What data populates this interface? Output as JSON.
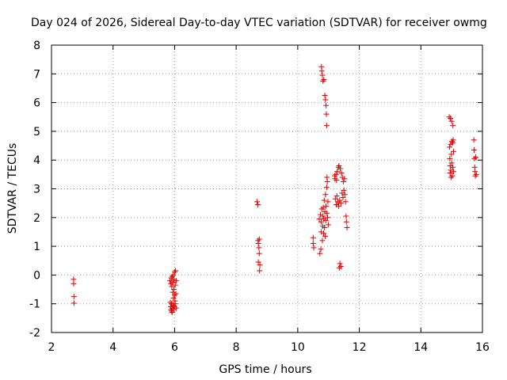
{
  "chart_data": {
    "type": "scatter",
    "title": "Day 024 of 2026, Sidereal Day-to-day VTEC variation (SDTVAR) for receiver owmg",
    "xlabel": "GPS time / hours",
    "ylabel": "SDTVAR / TECUs",
    "xlim": [
      2,
      16
    ],
    "ylim": [
      -2,
      8
    ],
    "xticks": [
      2,
      4,
      6,
      8,
      10,
      12,
      14,
      16
    ],
    "yticks": [
      -2,
      -1,
      0,
      1,
      2,
      3,
      4,
      5,
      6,
      7,
      8
    ],
    "grid": true,
    "marker": "+",
    "color": "#e00000",
    "series": [
      {
        "name": "SDTVAR",
        "points": [
          [
            2.72,
            -0.15
          ],
          [
            2.72,
            -0.3
          ],
          [
            2.73,
            -0.75
          ],
          [
            2.73,
            -0.98
          ],
          [
            5.85,
            -0.2
          ],
          [
            5.86,
            -0.95
          ],
          [
            5.87,
            -1.1
          ],
          [
            5.88,
            -0.3
          ],
          [
            5.88,
            -1.2
          ],
          [
            5.89,
            -0.1
          ],
          [
            5.9,
            -1.0
          ],
          [
            5.9,
            -1.25
          ],
          [
            5.91,
            -0.4
          ],
          [
            5.92,
            -1.3
          ],
          [
            5.92,
            -0.05
          ],
          [
            5.93,
            -1.15
          ],
          [
            5.94,
            -0.6
          ],
          [
            5.94,
            -0.25
          ],
          [
            5.95,
            -1.05
          ],
          [
            5.96,
            -0.8
          ],
          [
            5.96,
            0.0
          ],
          [
            5.97,
            -1.2
          ],
          [
            5.98,
            -0.5
          ],
          [
            5.98,
            -0.15
          ],
          [
            5.99,
            -1.1
          ],
          [
            6.0,
            0.1
          ],
          [
            6.0,
            -0.7
          ],
          [
            6.01,
            -0.9
          ],
          [
            6.02,
            -0.35
          ],
          [
            6.02,
            -1.0
          ],
          [
            6.03,
            0.15
          ],
          [
            6.04,
            -0.65
          ],
          [
            6.05,
            -0.2
          ],
          [
            6.05,
            -1.15
          ],
          [
            8.68,
            2.55
          ],
          [
            8.7,
            2.45
          ],
          [
            8.71,
            1.2
          ],
          [
            8.72,
            1.1
          ],
          [
            8.72,
            0.45
          ],
          [
            8.74,
            0.95
          ],
          [
            8.75,
            1.25
          ],
          [
            8.75,
            0.75
          ],
          [
            8.76,
            0.15
          ],
          [
            8.77,
            0.35
          ],
          [
            10.5,
            1.3
          ],
          [
            10.5,
            1.1
          ],
          [
            10.52,
            0.95
          ],
          [
            10.7,
            1.95
          ],
          [
            10.72,
            0.75
          ],
          [
            10.74,
            2.1
          ],
          [
            10.75,
            0.9
          ],
          [
            10.76,
            1.5
          ],
          [
            10.76,
            1.85
          ],
          [
            10.77,
            7.25
          ],
          [
            10.78,
            2.3
          ],
          [
            10.78,
            7.1
          ],
          [
            10.8,
            6.95
          ],
          [
            10.8,
            1.2
          ],
          [
            10.81,
            1.7
          ],
          [
            10.82,
            6.75
          ],
          [
            10.82,
            2.05
          ],
          [
            10.83,
            2.35
          ],
          [
            10.84,
            1.45
          ],
          [
            10.85,
            6.8
          ],
          [
            10.85,
            1.95
          ],
          [
            10.86,
            2.6
          ],
          [
            10.87,
            1.65
          ],
          [
            10.88,
            2.2
          ],
          [
            10.88,
            6.25
          ],
          [
            10.89,
            1.35
          ],
          [
            10.9,
            2.8
          ],
          [
            10.9,
            6.1
          ],
          [
            10.91,
            1.9
          ],
          [
            10.92,
            5.9
          ],
          [
            10.92,
            2.4
          ],
          [
            10.93,
            5.6
          ],
          [
            10.94,
            3.05
          ],
          [
            10.94,
            5.2
          ],
          [
            10.95,
            3.4
          ],
          [
            10.95,
            2.15
          ],
          [
            10.96,
            3.25
          ],
          [
            10.97,
            2.0
          ],
          [
            10.98,
            2.55
          ],
          [
            10.99,
            1.75
          ],
          [
            11.2,
            3.45
          ],
          [
            11.21,
            3.35
          ],
          [
            11.22,
            2.65
          ],
          [
            11.24,
            3.5
          ],
          [
            11.25,
            2.45
          ],
          [
            11.26,
            3.3
          ],
          [
            11.27,
            2.75
          ],
          [
            11.28,
            3.6
          ],
          [
            11.3,
            2.55
          ],
          [
            11.32,
            3.75
          ],
          [
            11.33,
            2.4
          ],
          [
            11.34,
            3.8
          ],
          [
            11.35,
            0.25
          ],
          [
            11.36,
            2.6
          ],
          [
            11.37,
            0.4
          ],
          [
            11.38,
            3.7
          ],
          [
            11.4,
            0.3
          ],
          [
            11.4,
            2.5
          ],
          [
            11.42,
            3.55
          ],
          [
            11.44,
            2.85
          ],
          [
            11.45,
            3.4
          ],
          [
            11.47,
            2.7
          ],
          [
            11.48,
            3.25
          ],
          [
            11.5,
            2.95
          ],
          [
            11.52,
            3.35
          ],
          [
            11.53,
            2.8
          ],
          [
            11.55,
            2.55
          ],
          [
            11.57,
            2.05
          ],
          [
            11.58,
            1.85
          ],
          [
            11.6,
            1.65
          ],
          [
            14.92,
            5.5
          ],
          [
            14.93,
            4.45
          ],
          [
            14.94,
            4.05
          ],
          [
            14.95,
            3.8
          ],
          [
            14.95,
            3.55
          ],
          [
            14.96,
            5.45
          ],
          [
            14.97,
            4.55
          ],
          [
            14.97,
            3.65
          ],
          [
            14.98,
            3.4
          ],
          [
            14.99,
            4.2
          ],
          [
            15.0,
            5.35
          ],
          [
            15.0,
            3.9
          ],
          [
            15.01,
            4.65
          ],
          [
            15.02,
            3.45
          ],
          [
            15.03,
            4.6
          ],
          [
            15.04,
            5.2
          ],
          [
            15.04,
            3.75
          ],
          [
            15.05,
            4.7
          ],
          [
            15.06,
            3.6
          ],
          [
            15.06,
            4.3
          ],
          [
            15.72,
            4.7
          ],
          [
            15.73,
            4.35
          ],
          [
            15.74,
            4.05
          ],
          [
            15.75,
            3.75
          ],
          [
            15.76,
            3.6
          ],
          [
            15.77,
            3.45
          ],
          [
            15.78,
            4.1
          ],
          [
            15.8,
            3.5
          ]
        ]
      }
    ]
  }
}
